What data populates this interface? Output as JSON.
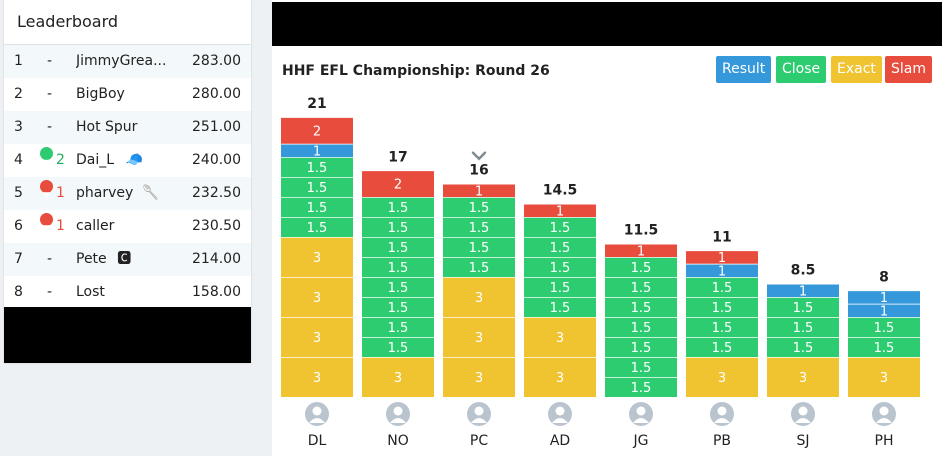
{
  "leaderboard": {
    "title": "Leaderboard",
    "rows": [
      {
        "rank": "1",
        "move": "-",
        "dir": "none",
        "name": "JimmyGrea...",
        "score": "283.00",
        "badge": ""
      },
      {
        "rank": "2",
        "move": "-",
        "dir": "none",
        "name": "BigBoy",
        "score": "280.00",
        "badge": ""
      },
      {
        "rank": "3",
        "move": "-",
        "dir": "none",
        "name": "Hot Spur",
        "score": "251.00",
        "badge": ""
      },
      {
        "rank": "4",
        "move": "2",
        "dir": "up",
        "name": "Dai_L",
        "score": "240.00",
        "badge": "cap-icon"
      },
      {
        "rank": "5",
        "move": "1",
        "dir": "down",
        "name": "pharvey",
        "score": "232.50",
        "badge": "wooden-spoon-icon"
      },
      {
        "rank": "6",
        "move": "1",
        "dir": "down",
        "name": "caller",
        "score": "230.50",
        "badge": ""
      },
      {
        "rank": "7",
        "move": "-",
        "dir": "none",
        "name": "Pete",
        "score": "214.00",
        "badge": "captain-armband-icon"
      },
      {
        "rank": "8",
        "move": "-",
        "dir": "none",
        "name": "Lost",
        "score": "158.00",
        "badge": ""
      }
    ]
  },
  "chart_header": {
    "title": "HHF EFL Championship: Round 26",
    "buttons": [
      {
        "label": "Result",
        "color": "#3498db"
      },
      {
        "label": "Close",
        "color": "#2ecc71"
      },
      {
        "label": "Exact",
        "color": "#f0c330"
      },
      {
        "label": "Slam",
        "color": "#e74c3c"
      }
    ]
  },
  "chart_data": {
    "type": "bar",
    "stacked": true,
    "title": "HHF EFL Championship: Round 26",
    "segment_colors": {
      "Slam": "#e74c3c",
      "Result": "#3498db",
      "Close": "#2ecc71",
      "Exact": "#f0c330"
    },
    "selected_player": "PC",
    "players": [
      {
        "initials": "DL",
        "total": "21",
        "segments": [
          {
            "type": "Slam",
            "value": 2
          },
          {
            "type": "Result",
            "value": 1
          },
          {
            "type": "Close",
            "value": 1.5
          },
          {
            "type": "Close",
            "value": 1.5
          },
          {
            "type": "Close",
            "value": 1.5
          },
          {
            "type": "Close",
            "value": 1.5
          },
          {
            "type": "Exact",
            "value": 3
          },
          {
            "type": "Exact",
            "value": 3
          },
          {
            "type": "Exact",
            "value": 3
          },
          {
            "type": "Exact",
            "value": 3
          }
        ]
      },
      {
        "initials": "NO",
        "total": "17",
        "segments": [
          {
            "type": "Slam",
            "value": 2
          },
          {
            "type": "Close",
            "value": 1.5
          },
          {
            "type": "Close",
            "value": 1.5
          },
          {
            "type": "Close",
            "value": 1.5
          },
          {
            "type": "Close",
            "value": 1.5
          },
          {
            "type": "Close",
            "value": 1.5
          },
          {
            "type": "Close",
            "value": 1.5
          },
          {
            "type": "Close",
            "value": 1.5
          },
          {
            "type": "Close",
            "value": 1.5
          },
          {
            "type": "Exact",
            "value": 3
          }
        ]
      },
      {
        "initials": "PC",
        "total": "16",
        "segments": [
          {
            "type": "Slam",
            "value": 1
          },
          {
            "type": "Close",
            "value": 1.5
          },
          {
            "type": "Close",
            "value": 1.5
          },
          {
            "type": "Close",
            "value": 1.5
          },
          {
            "type": "Close",
            "value": 1.5
          },
          {
            "type": "Exact",
            "value": 3
          },
          {
            "type": "Exact",
            "value": 3
          },
          {
            "type": "Exact",
            "value": 3
          }
        ]
      },
      {
        "initials": "AD",
        "total": "14.5",
        "segments": [
          {
            "type": "Slam",
            "value": 1
          },
          {
            "type": "Close",
            "value": 1.5
          },
          {
            "type": "Close",
            "value": 1.5
          },
          {
            "type": "Close",
            "value": 1.5
          },
          {
            "type": "Close",
            "value": 1.5
          },
          {
            "type": "Close",
            "value": 1.5
          },
          {
            "type": "Exact",
            "value": 3
          },
          {
            "type": "Exact",
            "value": 3
          }
        ]
      },
      {
        "initials": "JG",
        "total": "11.5",
        "segments": [
          {
            "type": "Slam",
            "value": 1
          },
          {
            "type": "Close",
            "value": 1.5
          },
          {
            "type": "Close",
            "value": 1.5
          },
          {
            "type": "Close",
            "value": 1.5
          },
          {
            "type": "Close",
            "value": 1.5
          },
          {
            "type": "Close",
            "value": 1.5
          },
          {
            "type": "Close",
            "value": 1.5
          },
          {
            "type": "Close",
            "value": 1.5
          }
        ]
      },
      {
        "initials": "PB",
        "total": "11",
        "segments": [
          {
            "type": "Slam",
            "value": 1
          },
          {
            "type": "Result",
            "value": 1
          },
          {
            "type": "Close",
            "value": 1.5
          },
          {
            "type": "Close",
            "value": 1.5
          },
          {
            "type": "Close",
            "value": 1.5
          },
          {
            "type": "Close",
            "value": 1.5
          },
          {
            "type": "Exact",
            "value": 3
          }
        ]
      },
      {
        "initials": "SJ",
        "total": "8.5",
        "segments": [
          {
            "type": "Result",
            "value": 1
          },
          {
            "type": "Close",
            "value": 1.5
          },
          {
            "type": "Close",
            "value": 1.5
          },
          {
            "type": "Close",
            "value": 1.5
          },
          {
            "type": "Exact",
            "value": 3
          }
        ]
      },
      {
        "initials": "PH",
        "total": "8",
        "segments": [
          {
            "type": "Result",
            "value": 1
          },
          {
            "type": "Result",
            "value": 1
          },
          {
            "type": "Close",
            "value": 1.5
          },
          {
            "type": "Close",
            "value": 1.5
          },
          {
            "type": "Exact",
            "value": 3
          }
        ]
      }
    ]
  }
}
